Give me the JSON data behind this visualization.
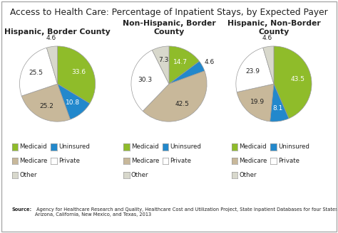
{
  "title": "Access to Health Care: Percentage of Inpatient Stays, by Expected Payer",
  "source_bold": "Source:",
  "source_rest": " Agency for Healthcare Research and Quality, Healthcare Cost and Utilization Project, State Inpatient Databases for four States:\nArizona, California, New Mexico, and Texas, 2013",
  "charts": [
    {
      "subtitle": "Hispanic, Border County",
      "values": [
        33.6,
        10.8,
        25.2,
        25.5,
        4.6
      ],
      "colors": [
        "#8fbc2a",
        "#2288cc",
        "#c8b89a",
        "#ffffff",
        "#d8d8cc"
      ]
    },
    {
      "subtitle": "Non-Hispanic, Border\nCounty",
      "values": [
        14.7,
        4.6,
        42.5,
        30.3,
        7.3
      ],
      "colors": [
        "#8fbc2a",
        "#2288cc",
        "#c8b89a",
        "#ffffff",
        "#d8d8cc"
      ]
    },
    {
      "subtitle": "Hispanic, Non-Border\nCounty",
      "values": [
        43.5,
        8.1,
        19.9,
        23.9,
        4.6
      ],
      "colors": [
        "#8fbc2a",
        "#2288cc",
        "#c8b89a",
        "#ffffff",
        "#d8d8cc"
      ]
    }
  ],
  "legend_labels": [
    "Medicaid",
    "Uninsured",
    "Medicare",
    "Private",
    "Other"
  ],
  "legend_colors": [
    "#8fbc2a",
    "#2288cc",
    "#c8b89a",
    "#ffffff",
    "#d8d8cc"
  ],
  "bg_color": "#ffffff",
  "border_color": "#cccccc",
  "text_color": "#222222",
  "title_fontsize": 8.8,
  "subtitle_fontsize": 7.8,
  "label_fontsize": 6.5,
  "legend_fontsize": 6.2,
  "source_fontsize": 4.8
}
